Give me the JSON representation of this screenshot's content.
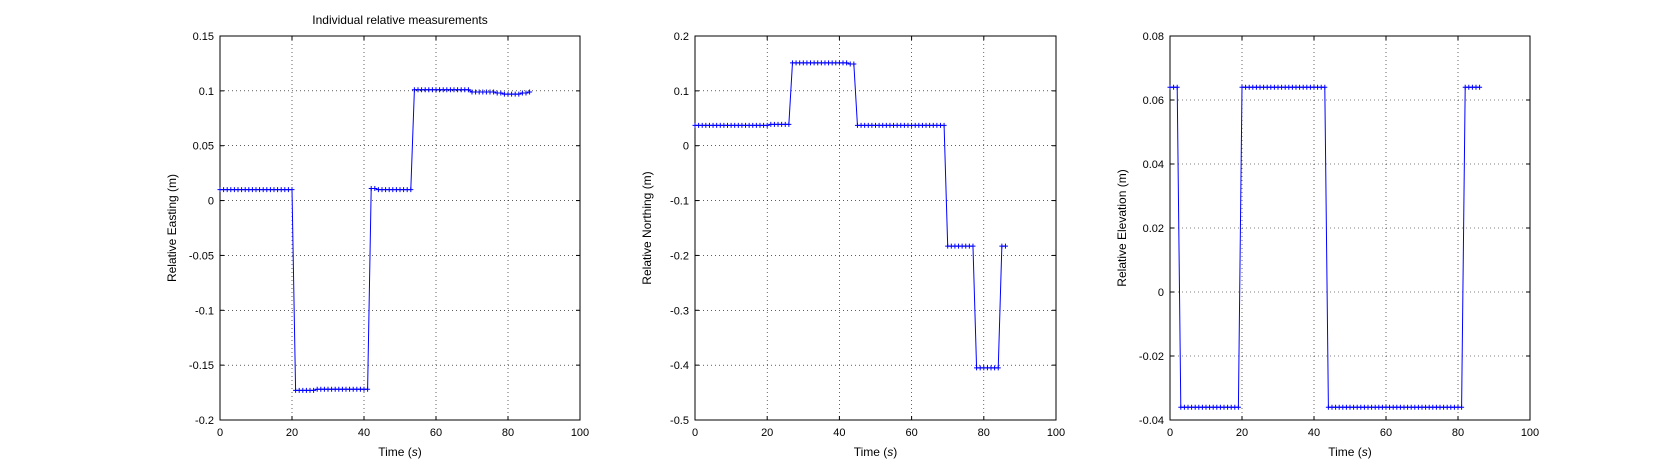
{
  "figure": {
    "title": "Individual relative measurements"
  },
  "chart_data": [
    {
      "type": "line",
      "title": "Individual relative measurements",
      "xlabel_main": "Time (",
      "xlabel_unit": "s",
      "xlabel_close": ")",
      "ylabel": "Relative Easting (m)",
      "xlim": [
        0,
        100
      ],
      "ylim": [
        -0.2,
        0.15
      ],
      "xticks": [
        0,
        20,
        40,
        60,
        80,
        100
      ],
      "yticks": [
        -0.2,
        -0.15,
        -0.1,
        -0.05,
        0,
        0.05,
        0.1,
        0.15
      ],
      "ytick_labels": [
        "-0.2",
        "-0.15",
        "-0.1",
        "-0.05",
        "0",
        "0.05",
        "0.1",
        "0.15"
      ],
      "grid": true,
      "color": "#0000ff",
      "series": [
        {
          "x": [
            0,
            1,
            2,
            3,
            4,
            5,
            6,
            7,
            8,
            9,
            10,
            11,
            12,
            13,
            14,
            15,
            16,
            17,
            18,
            19,
            20,
            21,
            22,
            23,
            24,
            25,
            26,
            27,
            28,
            29,
            30,
            31,
            32,
            33,
            34,
            35,
            36,
            37,
            38,
            39,
            40,
            41,
            42,
            43,
            44,
            45,
            46,
            47,
            48,
            49,
            50,
            51,
            52,
            53,
            54,
            55,
            56,
            57,
            58,
            59,
            60,
            61,
            62,
            63,
            64,
            65,
            66,
            67,
            68,
            69,
            70,
            71,
            72,
            73,
            74,
            75,
            76,
            77,
            78,
            79,
            80,
            81,
            82,
            83,
            84,
            85,
            86
          ],
          "y": [
            0.01,
            0.01,
            0.01,
            0.01,
            0.01,
            0.01,
            0.01,
            0.01,
            0.01,
            0.01,
            0.01,
            0.01,
            0.01,
            0.01,
            0.01,
            0.01,
            0.01,
            0.01,
            0.01,
            0.01,
            0.01,
            -0.173,
            -0.173,
            -0.173,
            -0.173,
            -0.173,
            -0.173,
            -0.172,
            -0.172,
            -0.172,
            -0.172,
            -0.172,
            -0.172,
            -0.172,
            -0.172,
            -0.172,
            -0.172,
            -0.172,
            -0.172,
            -0.172,
            -0.172,
            -0.172,
            0.011,
            0.011,
            0.01,
            0.01,
            0.01,
            0.01,
            0.01,
            0.01,
            0.01,
            0.01,
            0.01,
            0.01,
            0.101,
            0.101,
            0.101,
            0.101,
            0.101,
            0.101,
            0.101,
            0.101,
            0.101,
            0.101,
            0.101,
            0.101,
            0.101,
            0.101,
            0.101,
            0.101,
            0.099,
            0.099,
            0.099,
            0.099,
            0.099,
            0.099,
            0.099,
            0.098,
            0.098,
            0.097,
            0.097,
            0.097,
            0.097,
            0.097,
            0.098,
            0.098,
            0.099
          ]
        }
      ]
    },
    {
      "type": "line",
      "title": "",
      "xlabel_main": "Time (",
      "xlabel_unit": "s",
      "xlabel_close": ")",
      "ylabel": "Relative Northing (m)",
      "xlim": [
        0,
        100
      ],
      "ylim": [
        -0.5,
        0.2
      ],
      "xticks": [
        0,
        20,
        40,
        60,
        80,
        100
      ],
      "yticks": [
        -0.5,
        -0.4,
        -0.3,
        -0.2,
        -0.1,
        0,
        0.1,
        0.2
      ],
      "ytick_labels": [
        "-0.5",
        "-0.4",
        "-0.3",
        "-0.2",
        "-0.1",
        "0",
        "0.1",
        "0.2"
      ],
      "grid": true,
      "color": "#0000ff",
      "series": [
        {
          "x": [
            0,
            1,
            2,
            3,
            4,
            5,
            6,
            7,
            8,
            9,
            10,
            11,
            12,
            13,
            14,
            15,
            16,
            17,
            18,
            19,
            20,
            21,
            22,
            23,
            24,
            25,
            26,
            27,
            28,
            29,
            30,
            31,
            32,
            33,
            34,
            35,
            36,
            37,
            38,
            39,
            40,
            41,
            42,
            43,
            44,
            45,
            46,
            47,
            48,
            49,
            50,
            51,
            52,
            53,
            54,
            55,
            56,
            57,
            58,
            59,
            60,
            61,
            62,
            63,
            64,
            65,
            66,
            67,
            68,
            69,
            70,
            71,
            72,
            73,
            74,
            75,
            76,
            77,
            78,
            79,
            80,
            81,
            82,
            83,
            84,
            85,
            86
          ],
          "y": [
            0.037,
            0.037,
            0.037,
            0.037,
            0.037,
            0.037,
            0.037,
            0.037,
            0.037,
            0.037,
            0.037,
            0.037,
            0.037,
            0.037,
            0.037,
            0.037,
            0.037,
            0.037,
            0.037,
            0.037,
            0.037,
            0.039,
            0.039,
            0.039,
            0.039,
            0.039,
            0.039,
            0.151,
            0.151,
            0.151,
            0.151,
            0.151,
            0.151,
            0.151,
            0.151,
            0.151,
            0.151,
            0.151,
            0.151,
            0.151,
            0.151,
            0.151,
            0.151,
            0.149,
            0.149,
            0.037,
            0.037,
            0.037,
            0.037,
            0.037,
            0.037,
            0.037,
            0.037,
            0.037,
            0.037,
            0.037,
            0.037,
            0.037,
            0.037,
            0.037,
            0.037,
            0.037,
            0.037,
            0.037,
            0.037,
            0.037,
            0.037,
            0.037,
            0.037,
            0.037,
            -0.183,
            -0.183,
            -0.183,
            -0.183,
            -0.183,
            -0.183,
            -0.183,
            -0.183,
            -0.405,
            -0.405,
            -0.405,
            -0.405,
            -0.405,
            -0.405,
            -0.405,
            -0.183,
            -0.183
          ]
        }
      ]
    },
    {
      "type": "line",
      "title": "",
      "xlabel_main": "Time (",
      "xlabel_unit": "s",
      "xlabel_close": ")",
      "ylabel": "Relative Elevation (m)",
      "xlim": [
        0,
        100
      ],
      "ylim": [
        -0.04,
        0.08
      ],
      "xticks": [
        0,
        20,
        40,
        60,
        80,
        100
      ],
      "yticks": [
        -0.04,
        -0.02,
        0,
        0.02,
        0.04,
        0.06,
        0.08
      ],
      "ytick_labels": [
        "-0.04",
        "-0.02",
        "0",
        "0.02",
        "0.04",
        "0.06",
        "0.08"
      ],
      "grid": true,
      "color": "#0000ff",
      "series": [
        {
          "x": [
            0,
            1,
            2,
            3,
            4,
            5,
            6,
            7,
            8,
            9,
            10,
            11,
            12,
            13,
            14,
            15,
            16,
            17,
            18,
            19,
            20,
            21,
            22,
            23,
            24,
            25,
            26,
            27,
            28,
            29,
            30,
            31,
            32,
            33,
            34,
            35,
            36,
            37,
            38,
            39,
            40,
            41,
            42,
            43,
            44,
            45,
            46,
            47,
            48,
            49,
            50,
            51,
            52,
            53,
            54,
            55,
            56,
            57,
            58,
            59,
            60,
            61,
            62,
            63,
            64,
            65,
            66,
            67,
            68,
            69,
            70,
            71,
            72,
            73,
            74,
            75,
            76,
            77,
            78,
            79,
            80,
            81,
            82,
            83,
            84,
            85,
            86
          ],
          "y": [
            0.064,
            0.064,
            0.064,
            -0.036,
            -0.036,
            -0.036,
            -0.036,
            -0.036,
            -0.036,
            -0.036,
            -0.036,
            -0.036,
            -0.036,
            -0.036,
            -0.036,
            -0.036,
            -0.036,
            -0.036,
            -0.036,
            -0.036,
            0.064,
            0.064,
            0.064,
            0.064,
            0.064,
            0.064,
            0.064,
            0.064,
            0.064,
            0.064,
            0.064,
            0.064,
            0.064,
            0.064,
            0.064,
            0.064,
            0.064,
            0.064,
            0.064,
            0.064,
            0.064,
            0.064,
            0.064,
            0.064,
            -0.036,
            -0.036,
            -0.036,
            -0.036,
            -0.036,
            -0.036,
            -0.036,
            -0.036,
            -0.036,
            -0.036,
            -0.036,
            -0.036,
            -0.036,
            -0.036,
            -0.036,
            -0.036,
            -0.036,
            -0.036,
            -0.036,
            -0.036,
            -0.036,
            -0.036,
            -0.036,
            -0.036,
            -0.036,
            -0.036,
            -0.036,
            -0.036,
            -0.036,
            -0.036,
            -0.036,
            -0.036,
            -0.036,
            -0.036,
            -0.036,
            -0.036,
            -0.036,
            -0.036,
            0.064,
            0.064,
            0.064,
            0.064,
            0.064
          ]
        }
      ]
    }
  ]
}
